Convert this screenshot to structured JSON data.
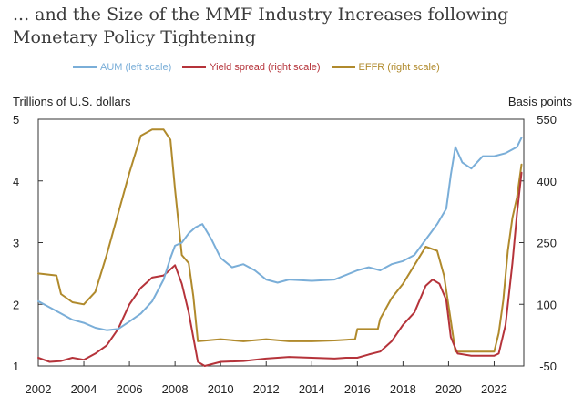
{
  "title": "... and the Size of the MMF Industry Increases following Monetary Policy Tightening",
  "legend": [
    {
      "label": "AUM (left scale)",
      "color": "#7aaed8"
    },
    {
      "label": "Yield spread (right scale)",
      "color": "#b5333a"
    },
    {
      "label": "EFFR (right scale)",
      "color": "#b08a2c"
    }
  ],
  "chart_data": {
    "type": "line",
    "left_axis_label": "Trillions of U.S. dollars",
    "right_axis_label": "Basis points",
    "x_ticks": [
      "2002",
      "2004",
      "2006",
      "2008",
      "2010",
      "2012",
      "2014",
      "2016",
      "2018",
      "2020",
      "2022"
    ],
    "xlim": [
      2002,
      2023.3
    ],
    "left_ticks": [
      1,
      2,
      3,
      4,
      5
    ],
    "left_ylim": [
      1,
      5
    ],
    "right_ticks": [
      -50,
      100,
      250,
      400,
      550
    ],
    "right_ylim": [
      -50,
      550
    ],
    "grid": false,
    "series": [
      {
        "name": "AUM (left scale)",
        "axis": "left",
        "color": "#7aaed8",
        "x": [
          2002.0,
          2002.5,
          2003.0,
          2003.5,
          2004.0,
          2004.5,
          2005.0,
          2005.5,
          2006.0,
          2006.5,
          2007.0,
          2007.5,
          2007.8,
          2008.0,
          2008.3,
          2008.6,
          2008.9,
          2009.2,
          2009.6,
          2010.0,
          2010.5,
          2011.0,
          2011.5,
          2012.0,
          2012.5,
          2013.0,
          2014.0,
          2015.0,
          2016.0,
          2016.5,
          2017.0,
          2017.5,
          2018.0,
          2018.5,
          2019.0,
          2019.5,
          2019.9,
          2020.1,
          2020.3,
          2020.6,
          2021.0,
          2021.5,
          2022.0,
          2022.5,
          2023.0,
          2023.2
        ],
        "y": [
          2.05,
          1.95,
          1.85,
          1.75,
          1.7,
          1.62,
          1.58,
          1.6,
          1.72,
          1.85,
          2.05,
          2.4,
          2.75,
          2.95,
          3.0,
          3.15,
          3.25,
          3.3,
          3.05,
          2.75,
          2.6,
          2.65,
          2.55,
          2.4,
          2.35,
          2.4,
          2.38,
          2.4,
          2.55,
          2.6,
          2.55,
          2.65,
          2.7,
          2.8,
          3.05,
          3.3,
          3.55,
          4.1,
          4.55,
          4.3,
          4.2,
          4.4,
          4.4,
          4.45,
          4.55,
          4.7
        ]
      },
      {
        "name": "Yield spread (right scale)",
        "axis": "right",
        "color": "#b5333a",
        "x": [
          2002.0,
          2002.5,
          2003.0,
          2003.5,
          2004.0,
          2004.5,
          2005.0,
          2005.5,
          2006.0,
          2006.5,
          2007.0,
          2007.5,
          2007.8,
          2008.0,
          2008.3,
          2008.6,
          2008.8,
          2009.0,
          2009.3,
          2010.0,
          2011.0,
          2012.0,
          2013.0,
          2014.0,
          2015.0,
          2015.5,
          2016.0,
          2016.5,
          2017.0,
          2017.5,
          2018.0,
          2018.5,
          2019.0,
          2019.3,
          2019.6,
          2019.9,
          2020.1,
          2020.4,
          2021.0,
          2021.5,
          2022.0,
          2022.2,
          2022.5,
          2022.8,
          2023.0,
          2023.2
        ],
        "y": [
          -30,
          -40,
          -38,
          -30,
          -35,
          -20,
          0,
          40,
          100,
          140,
          165,
          170,
          185,
          195,
          150,
          80,
          20,
          -40,
          -50,
          -40,
          -38,
          -32,
          -28,
          -30,
          -32,
          -30,
          -30,
          -22,
          -15,
          10,
          50,
          80,
          145,
          160,
          150,
          110,
          20,
          -20,
          -25,
          -25,
          -25,
          -20,
          50,
          200,
          320,
          420
        ]
      },
      {
        "name": "EFFR (right scale)",
        "axis": "right",
        "color": "#b08a2c",
        "x": [
          2002.0,
          2002.8,
          2003.0,
          2003.5,
          2004.0,
          2004.5,
          2005.0,
          2005.5,
          2006.0,
          2006.5,
          2007.0,
          2007.5,
          2007.8,
          2008.0,
          2008.3,
          2008.6,
          2008.8,
          2009.0,
          2010.0,
          2011.0,
          2012.0,
          2013.0,
          2014.0,
          2015.0,
          2015.9,
          2016.0,
          2016.9,
          2017.0,
          2017.5,
          2018.0,
          2018.5,
          2019.0,
          2019.5,
          2019.8,
          2020.1,
          2020.3,
          2021.0,
          2022.0,
          2022.2,
          2022.4,
          2022.6,
          2022.8,
          2023.0,
          2023.2
        ],
        "y": [
          175,
          170,
          125,
          105,
          100,
          130,
          220,
          320,
          420,
          510,
          525,
          525,
          500,
          380,
          220,
          200,
          120,
          10,
          15,
          10,
          15,
          10,
          10,
          12,
          15,
          40,
          40,
          65,
          115,
          150,
          195,
          240,
          230,
          170,
          60,
          -15,
          -15,
          -15,
          30,
          110,
          230,
          310,
          360,
          440
        ]
      }
    ]
  }
}
